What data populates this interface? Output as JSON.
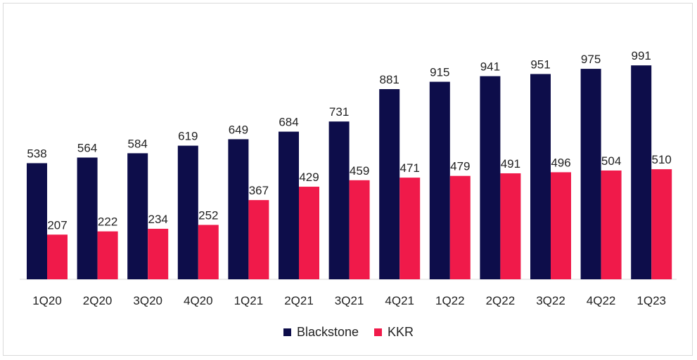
{
  "chart_data": {
    "type": "bar",
    "categories": [
      "1Q20",
      "2Q20",
      "3Q20",
      "4Q20",
      "1Q21",
      "2Q21",
      "3Q21",
      "4Q21",
      "1Q22",
      "2Q22",
      "3Q22",
      "4Q22",
      "1Q23"
    ],
    "series": [
      {
        "name": "Blackstone",
        "color": "#0d0d4a",
        "values": [
          538,
          564,
          584,
          619,
          649,
          684,
          731,
          881,
          915,
          941,
          951,
          975,
          991
        ]
      },
      {
        "name": "KKR",
        "color": "#f01a4a",
        "values": [
          207,
          222,
          234,
          252,
          367,
          429,
          459,
          471,
          479,
          491,
          496,
          504,
          510
        ]
      }
    ],
    "ylim": [
      0,
      1000
    ],
    "grid": false,
    "legend_position": "bottom",
    "data_labels": true
  }
}
